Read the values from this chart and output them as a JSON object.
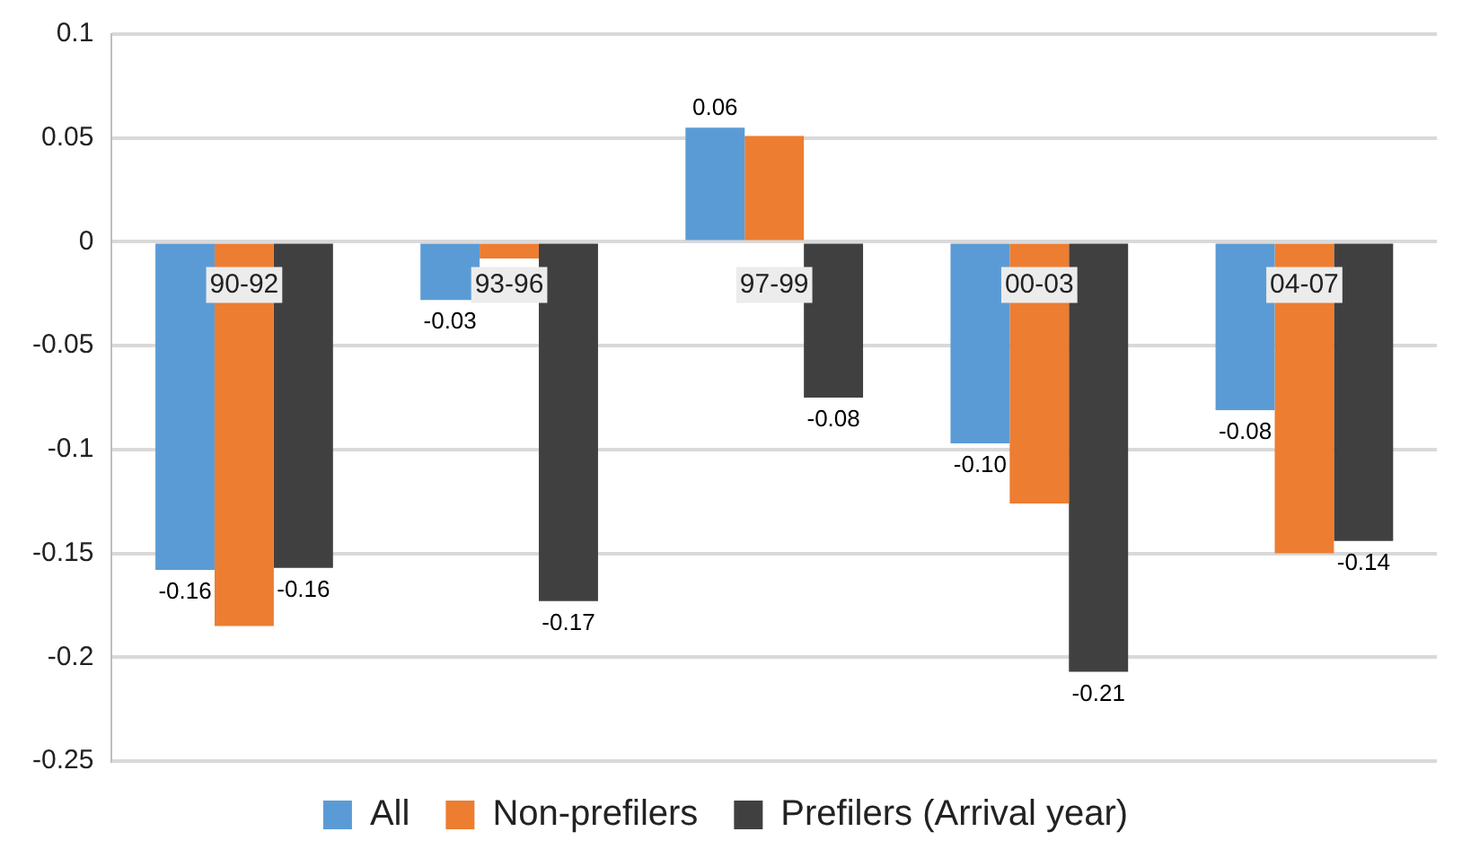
{
  "chart_data": {
    "type": "bar",
    "categories": [
      "90-92",
      "93-96",
      "97-99",
      "00-03",
      "04-07"
    ],
    "series": [
      {
        "name": "All",
        "color": "#5b9bd5",
        "values": [
          -0.158,
          -0.028,
          0.055,
          -0.097,
          -0.081
        ],
        "value_labels": [
          "-0.16",
          "-0.03",
          "0.06",
          "-0.10",
          "-0.08"
        ]
      },
      {
        "name": "Non-prefilers",
        "color": "#ed7d31",
        "values": [
          -0.185,
          -0.008,
          0.051,
          -0.126,
          -0.15
        ],
        "value_labels": [
          null,
          null,
          null,
          null,
          null
        ]
      },
      {
        "name": "Prefilers (Arrival year)",
        "color": "#404040",
        "values": [
          -0.157,
          -0.173,
          -0.075,
          -0.207,
          -0.144
        ],
        "value_labels": [
          "-0.16",
          "-0.17",
          "-0.08",
          "-0.21",
          "-0.14"
        ]
      }
    ],
    "ylim": [
      -0.25,
      0.1
    ],
    "yticks": [
      -0.25,
      -0.2,
      -0.15,
      -0.1,
      -0.05,
      0,
      0.05,
      0.1
    ],
    "grid": "y",
    "legend": "bottom"
  }
}
